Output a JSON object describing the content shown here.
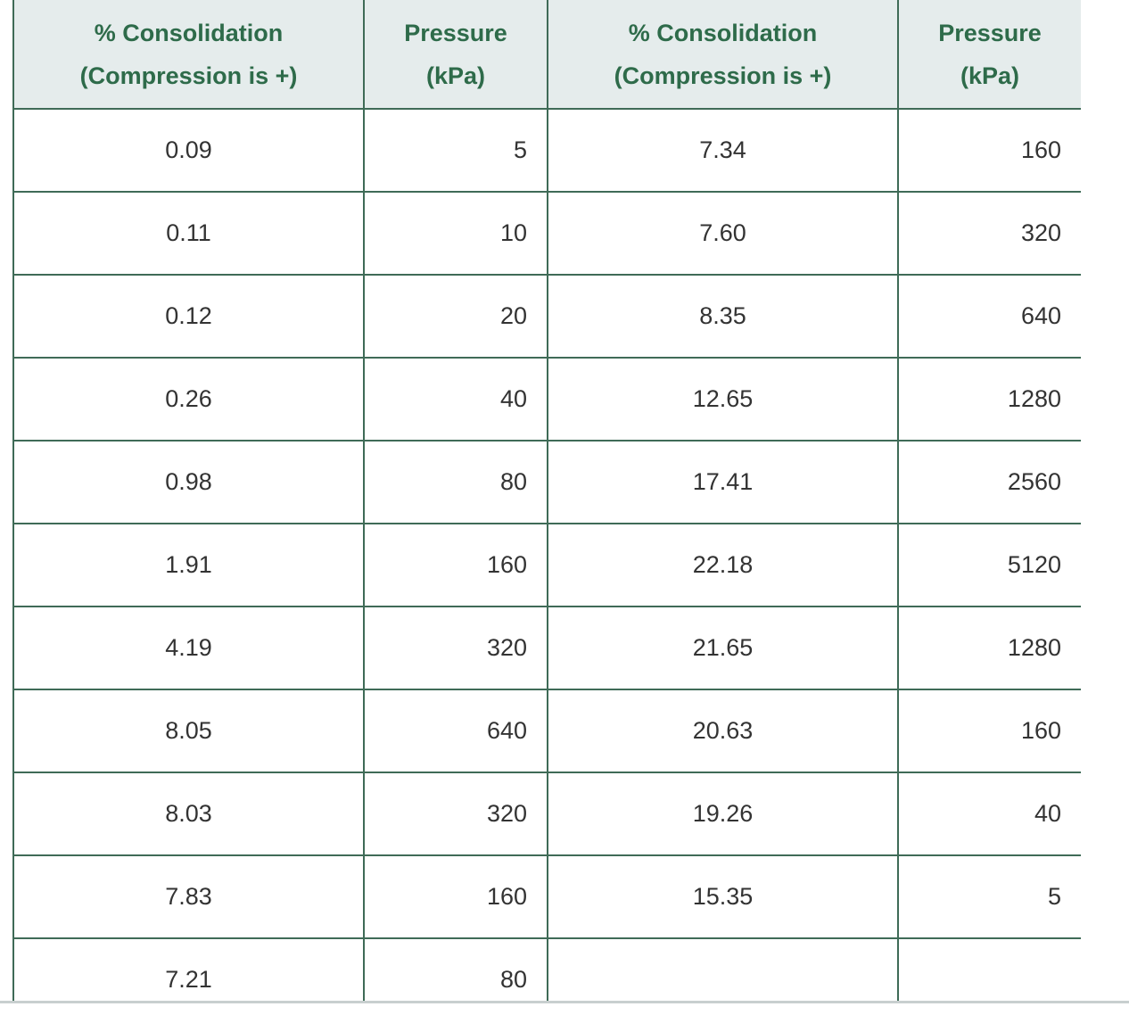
{
  "table": {
    "headers": [
      {
        "line1": "% Consolidation",
        "line2": "(Compression is +)"
      },
      {
        "line1": "Pressure",
        "line2": "(kPa)"
      },
      {
        "line1": "% Consolidation",
        "line2": "(Compression is +)"
      },
      {
        "line1": "Pressure",
        "line2": "(kPa)"
      }
    ],
    "rows": [
      [
        "0.09",
        "5",
        "7.34",
        "160"
      ],
      [
        "0.11",
        "10",
        "7.60",
        "320"
      ],
      [
        "0.12",
        "20",
        "8.35",
        "640"
      ],
      [
        "0.26",
        "40",
        "12.65",
        "1280"
      ],
      [
        "0.98",
        "80",
        "17.41",
        "2560"
      ],
      [
        "1.91",
        "160",
        "22.18",
        "5120"
      ],
      [
        "4.19",
        "320",
        "21.65",
        "1280"
      ],
      [
        "8.05",
        "640",
        "20.63",
        "160"
      ],
      [
        "8.03",
        "320",
        "19.26",
        "40"
      ],
      [
        "7.83",
        "160",
        "15.35",
        "5"
      ],
      [
        "7.21",
        "80",
        "",
        ""
      ]
    ]
  }
}
